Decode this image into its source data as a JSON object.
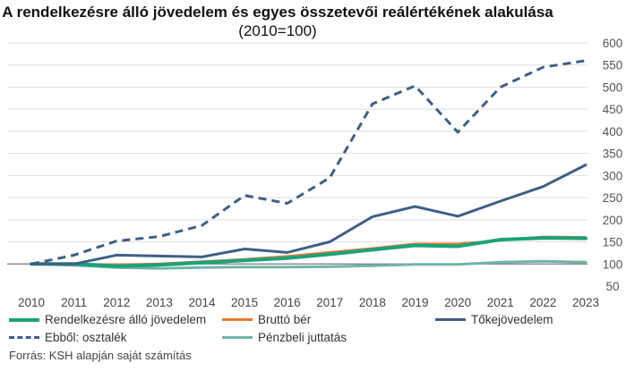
{
  "title": {
    "bold": "A rendelkezésre álló jövedelem és egyes összetevői reálértékének alakulása",
    "normal": "(2010=100)"
  },
  "source": "Forrás: KSH alapján saját számítás",
  "chart_data": {
    "type": "line",
    "x": [
      "2010",
      "2011",
      "2012",
      "2013",
      "2014",
      "2015",
      "2016",
      "2017",
      "2018",
      "2019",
      "2020",
      "2021",
      "2022",
      "2023"
    ],
    "ylim": [
      50,
      600
    ],
    "yticks": [
      50,
      100,
      150,
      200,
      250,
      300,
      350,
      400,
      450,
      500,
      550,
      600
    ],
    "grid": true,
    "baseline": 100,
    "legend_position": "bottom",
    "series": [
      {
        "name": "Rendelkezésre álló jövedelem",
        "color": "#1aa37a",
        "dash": "none",
        "width": 4,
        "values": [
          100,
          100,
          95,
          98,
          103,
          108,
          113,
          122,
          132,
          142,
          140,
          155,
          159,
          158
        ]
      },
      {
        "name": "Bruttó bér",
        "color": "#e8772e",
        "dash": "none",
        "width": 2,
        "values": [
          100,
          101,
          99,
          101,
          106,
          111,
          118,
          127,
          136,
          146,
          146,
          154,
          162,
          161
        ]
      },
      {
        "name": "Tőkejövedelem",
        "color": "#3f5f86",
        "dash": "none",
        "width": 3,
        "values": [
          100,
          100,
          120,
          118,
          116,
          134,
          126,
          150,
          207,
          230,
          208,
          242,
          275,
          324
        ]
      },
      {
        "name": "Ebből: osztalék",
        "color": "#3f5f86",
        "dash": "9,6",
        "width": 3,
        "values": [
          100,
          120,
          152,
          162,
          187,
          255,
          237,
          295,
          462,
          503,
          398,
          500,
          545,
          560
        ]
      },
      {
        "name": "Pénzbeli juttatás",
        "color": "#6fb5a8",
        "dash": "none",
        "width": 3,
        "values": [
          100,
          97,
          92,
          90,
          92,
          93,
          93,
          94,
          96,
          99,
          99,
          104,
          106,
          104
        ]
      }
    ]
  }
}
